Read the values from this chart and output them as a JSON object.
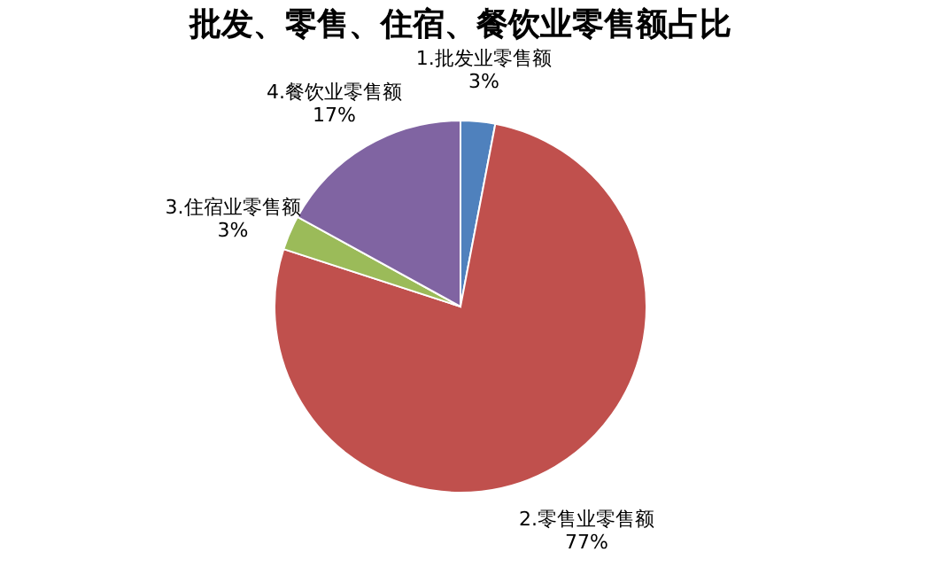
{
  "chart_data": {
    "type": "pie",
    "title": "批发、零售、住宿、餐饮业零售额占比",
    "categories": [
      "1.批发业零售额",
      "2.零售业零售额",
      "3.住宿业零售额",
      "4.餐饮业零售额"
    ],
    "values": [
      3,
      77,
      3,
      17
    ],
    "value_labels": [
      "3%",
      "77%",
      "3%",
      "17%"
    ],
    "colors": [
      "#4f81bd",
      "#c0504d",
      "#9bbb59",
      "#8064a2"
    ],
    "legend": false
  }
}
